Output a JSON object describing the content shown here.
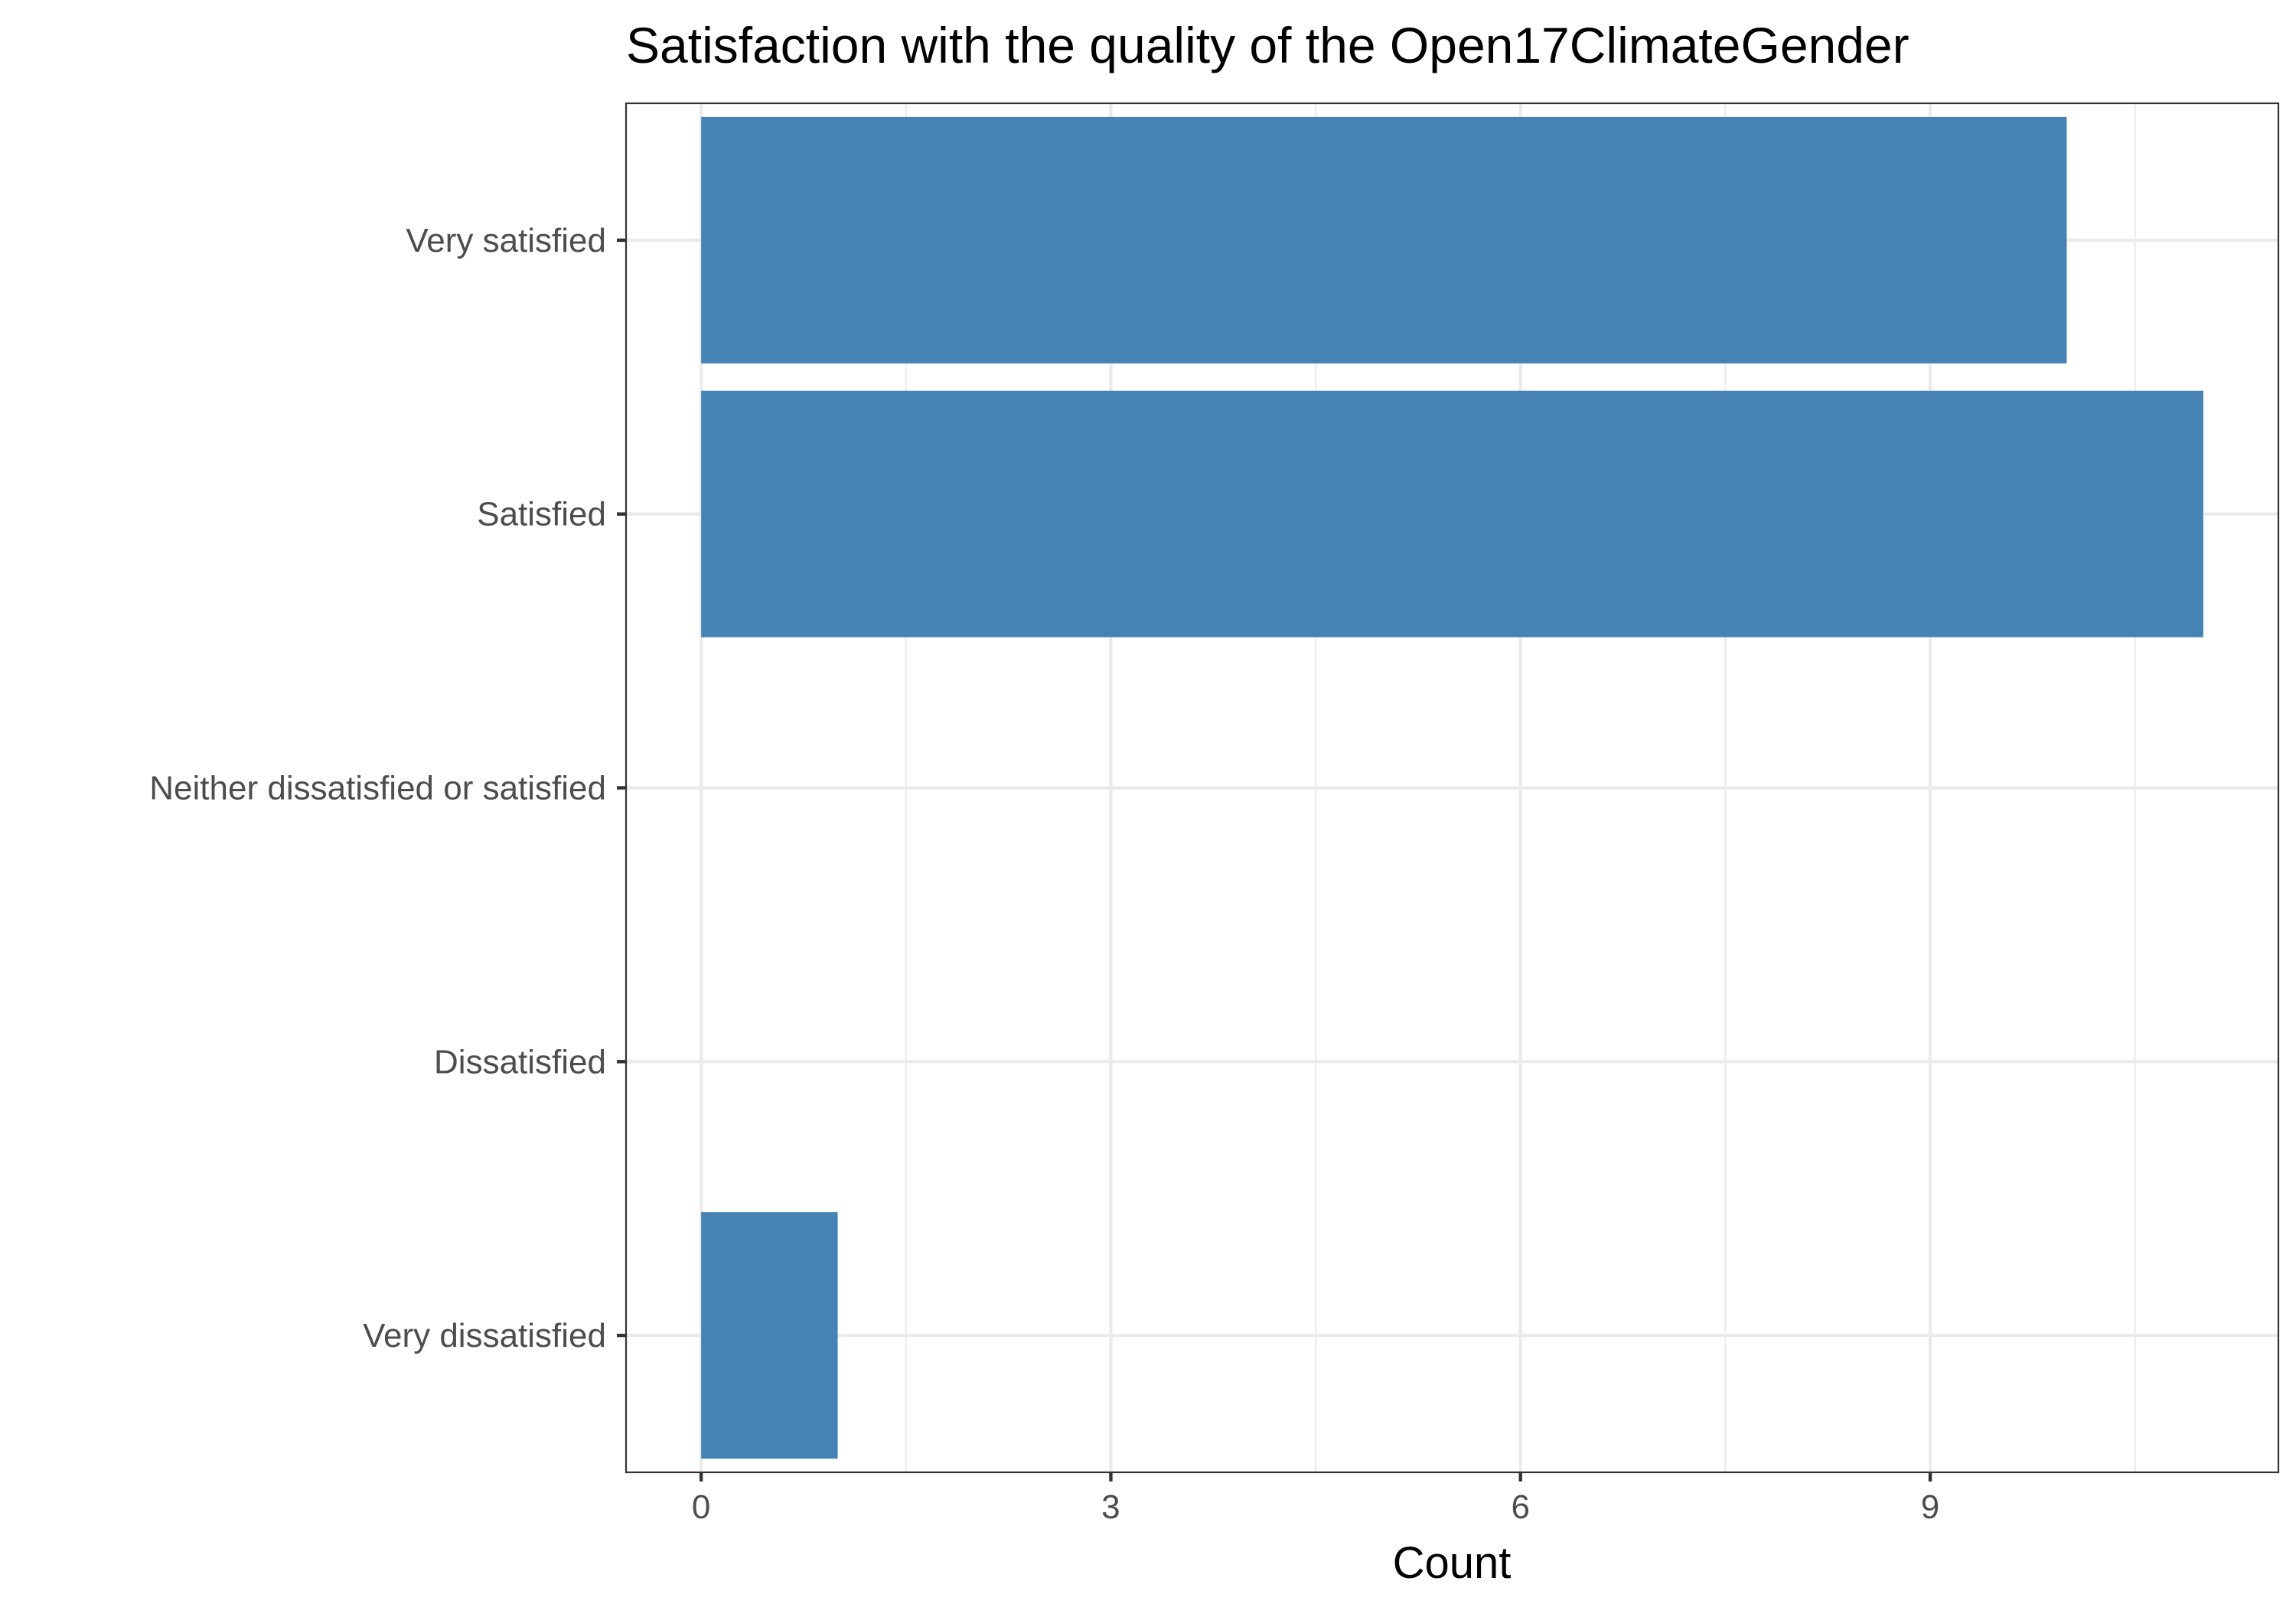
{
  "chart_data": {
    "type": "bar",
    "orientation": "horizontal",
    "title": "Satisfaction with the quality of the Open17ClimateGender",
    "xlabel": "Count",
    "ylabel": "",
    "categories": [
      "Very satisfied",
      "Satisfied",
      "Neither dissatisfied or satisfied",
      "Dissatisfied",
      "Very dissatisfied"
    ],
    "values": [
      10,
      11,
      0,
      0,
      1
    ],
    "xlim": [
      -0.55,
      11.55
    ],
    "xticks": [
      0,
      3,
      6,
      9
    ],
    "xtick_labels": [
      "0",
      "3",
      "6",
      "9"
    ],
    "grid": true,
    "bar_color": "#4682b4",
    "gridline_color": "#ebebeb",
    "panel_border_color": "#333333"
  }
}
